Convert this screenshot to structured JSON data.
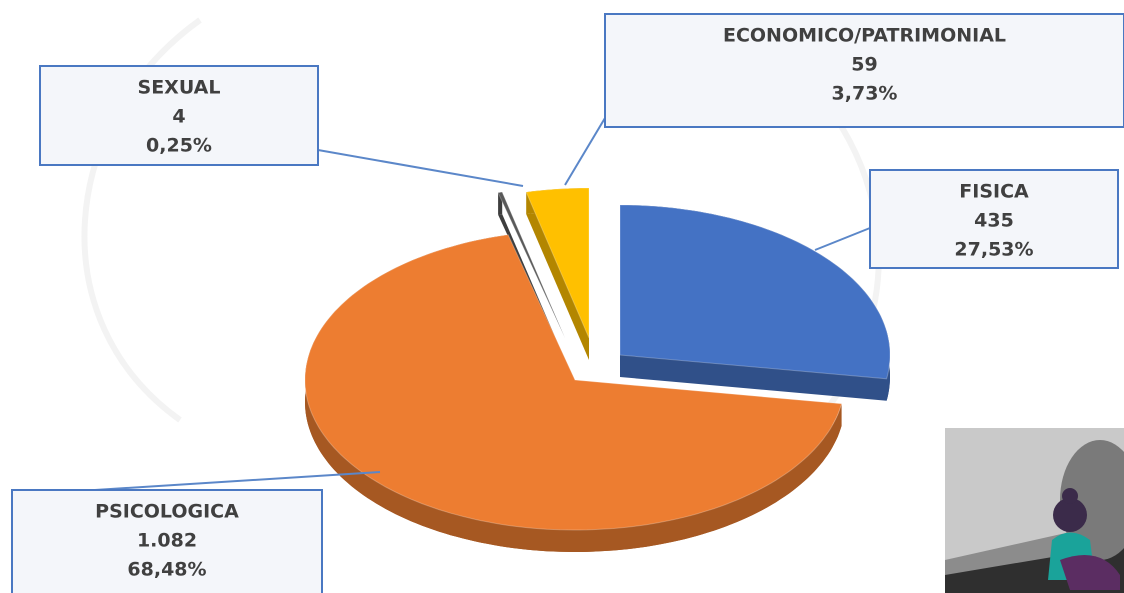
{
  "chart_data": {
    "type": "pie",
    "categories": [
      "FISICA",
      "PSICOLOGICA",
      "SEXUAL",
      "ECONOMICO/PATRIMONIAL"
    ],
    "values": [
      435,
      1082,
      4,
      59
    ],
    "value_labels": [
      "435",
      "1.082",
      "4",
      "59"
    ],
    "percents": [
      27.53,
      68.48,
      0.25,
      3.73
    ],
    "percent_labels": [
      "27,53%",
      "68,48%",
      "0,25%",
      "3,73%"
    ],
    "colors": [
      "#4472c4",
      "#ed7d31",
      "#595959",
      "#ffc000"
    ]
  }
}
